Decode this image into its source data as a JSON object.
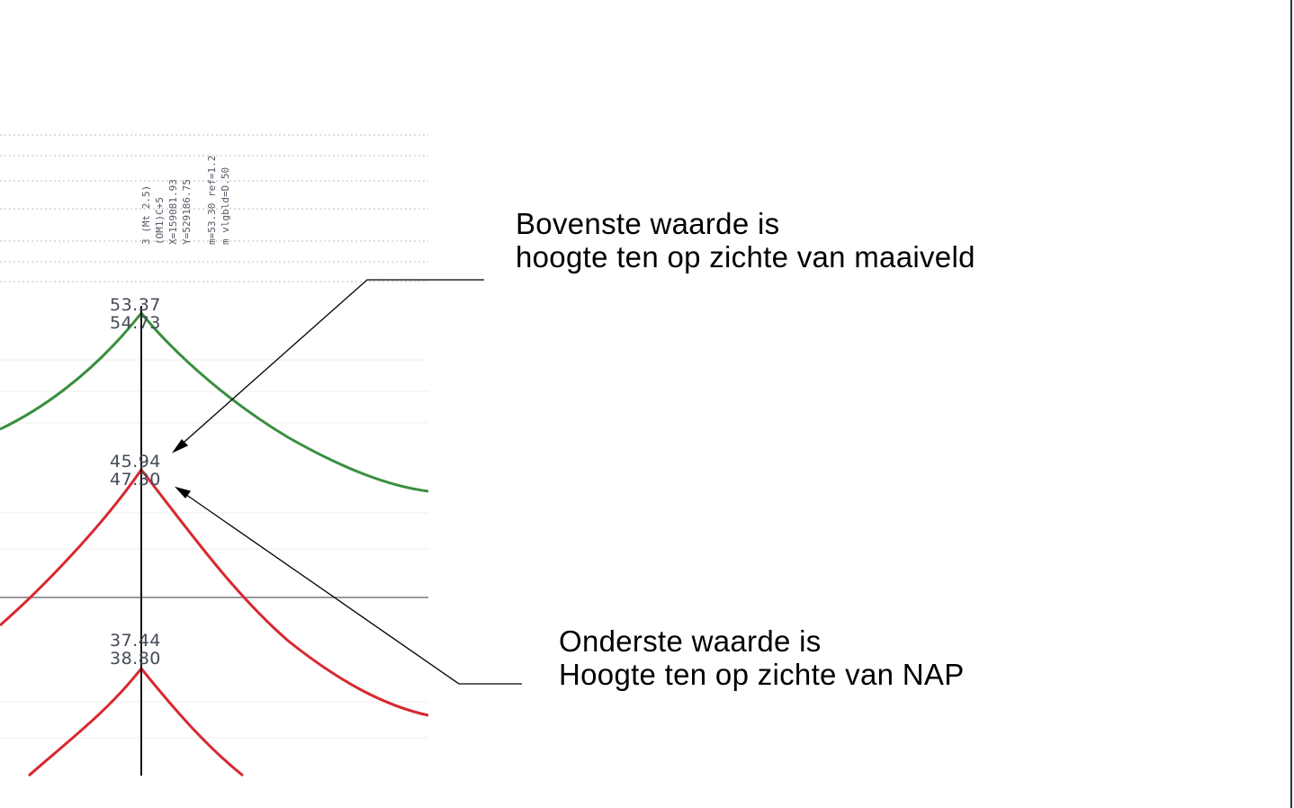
{
  "colors": {
    "upper_curve": "#3a8f3e",
    "middle_curve": "#d8282f",
    "lower_curve": "#d8282f",
    "axis": "#111111",
    "gridline": "#cfcfcf",
    "baseline": "#9a9a9a",
    "leader": "#000000"
  },
  "header_labels": [
    "3 (Mt 2.5)",
    "(OM1)C+5",
    "X=159081.93",
    "Y=529186.75",
    "m=53.30 ref=1.2",
    "m vlgbld=D.50"
  ],
  "levels": {
    "upper": {
      "top": "53.37",
      "bottom": "54.73"
    },
    "middle": {
      "top": "45.94",
      "bottom": "47.30"
    },
    "lower": {
      "top": "37.44",
      "bottom": "38.80"
    }
  },
  "annotations": {
    "top": {
      "line1": "Bovenste waarde is",
      "line2": "hoogte ten op zichte van maaiveld"
    },
    "bottom": {
      "line1": "Onderste waarde is",
      "line2": "Hoogte ten op zichte van NAP"
    }
  }
}
